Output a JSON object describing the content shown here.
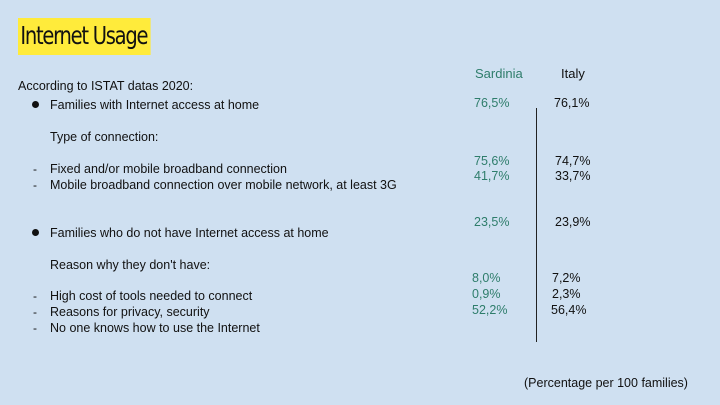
{
  "title": "Internet Usage",
  "intro": "According to ISTAT datas 2020:",
  "columns": {
    "sardinia": "Sardinia",
    "italy": "Italy"
  },
  "rows": {
    "internet_access": {
      "label": "Families with Internet access at home",
      "sardinia": "76,5%",
      "italy": "76,1%"
    },
    "connection_heading": "Type of connection:",
    "broadband": {
      "label": "Fixed and/or mobile broadband connection",
      "sardinia": "75,6%",
      "italy": "74,7%"
    },
    "mobile": {
      "label": "Mobile broadband connection over mobile network, at least 3G",
      "sardinia": "41,7%",
      "italy": "33,7%"
    },
    "no_access": {
      "label": "Families who do not have Internet access at home",
      "sardinia": "23,5%",
      "italy": "23,9%"
    },
    "reason_heading": "Reason why they don't have:",
    "high_cost": {
      "label": "High cost of tools needed to connect",
      "sardinia": "8,0%",
      "italy": "7,2%"
    },
    "privacy": {
      "label": "Reasons for privacy, security",
      "sardinia": "0,9%",
      "italy": "2,3%"
    },
    "no_one_knows": {
      "label": "No one knows how to use the Internet",
      "sardinia": "52,2%",
      "italy": "56,4%"
    }
  },
  "footnote": "(Percentage per 100 families)",
  "colors": {
    "background": "#cfe0f1",
    "title_highlight": "#ffeb3b",
    "sardinia_value": "#2e7d6b"
  }
}
